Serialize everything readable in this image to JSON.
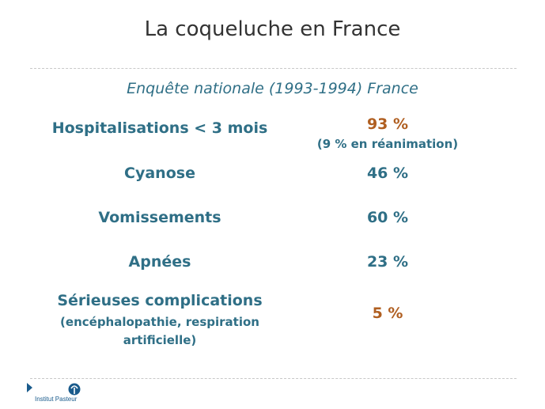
{
  "slide": {
    "title": "La coqueluche en France",
    "subtitle": "Enquête nationale (1993-1994) France"
  },
  "rows": [
    {
      "label": "Hospitalisations < 3 mois",
      "value": "93 %",
      "note": "(9 % en réanimation)"
    },
    {
      "label": "Cyanose",
      "value": "46 %"
    },
    {
      "label": "Vomissements",
      "value": "60 %"
    },
    {
      "label": "Apnées",
      "value": "23 %"
    },
    {
      "label": "Sérieuses complications",
      "label_note": "(encéphalopathie, respiration artificielle)",
      "value": "5 %"
    }
  ],
  "footer": {
    "logo_text": "Institut Pasteur"
  },
  "colors": {
    "title": "#333333",
    "text": "#2f6f86",
    "highlight": "#b05f21",
    "logo": "#1a5b8c"
  }
}
